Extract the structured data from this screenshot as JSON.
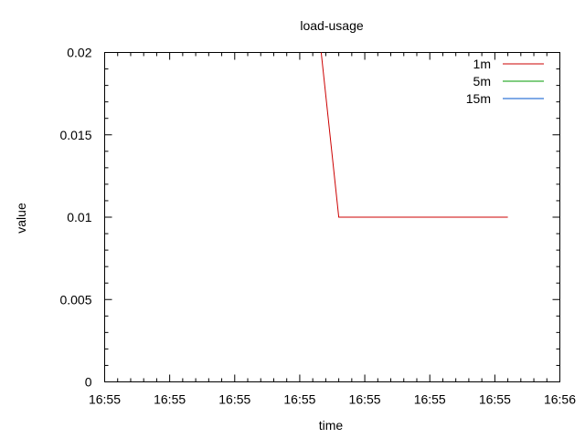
{
  "chart_data": {
    "type": "line",
    "title": "load-usage",
    "xlabel": "time",
    "ylabel": "value",
    "xlim": [
      0,
      7
    ],
    "ylim": [
      0,
      0.02
    ],
    "x_tick_positions": [
      0,
      1,
      2,
      3,
      4,
      5,
      6,
      7
    ],
    "x_tick_labels": [
      "16:55",
      "16:55",
      "16:55",
      "16:55",
      "16:55",
      "16:55",
      "16:55",
      "16:56"
    ],
    "y_ticks": [
      0,
      0.005,
      0.01,
      0.015,
      0.02
    ],
    "y_tick_labels": [
      "0",
      "0.005",
      "0.01",
      "0.015",
      "0.02"
    ],
    "x_minor_per_major": 5,
    "y_minor_per_major": 5,
    "grid": false,
    "legend_position": "top-right",
    "series": [
      {
        "name": "1m",
        "color": "#cc0000",
        "x": [
          3.33,
          3.6,
          6.2
        ],
        "y": [
          0.02,
          0.01,
          0.01
        ]
      },
      {
        "name": "5m",
        "color": "#009900",
        "x": [],
        "y": []
      },
      {
        "name": "15m",
        "color": "#0055cc",
        "x": [],
        "y": []
      }
    ]
  }
}
